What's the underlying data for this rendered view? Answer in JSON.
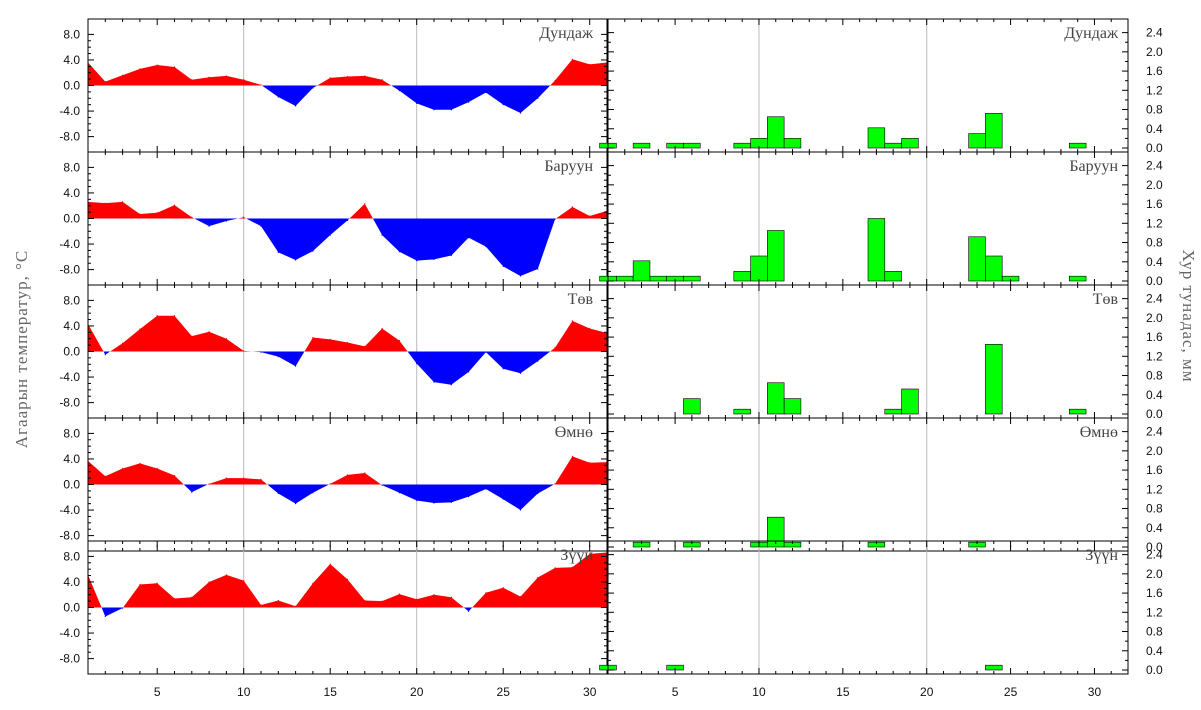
{
  "colors": {
    "positive": "#ff0000",
    "negative": "#0000ff",
    "bars": "#00ff00",
    "grid": "#bbbbbb"
  },
  "labels": {
    "left_axis_title": "Агаарын температур, °C",
    "right_axis_title": "Хур тунадас, мм"
  },
  "chart_data": [
    {
      "type": "area",
      "variable": "temperature anomaly",
      "xlabel": "",
      "ylabel": "Агаарын температур, °C",
      "xlim": [
        1,
        31
      ],
      "ylim": [
        -9,
        9
      ],
      "y_ticks": [
        "8.0",
        "4.0",
        "0.0",
        "-4.0",
        "-8.0"
      ],
      "x_ticks": [
        "5",
        "10",
        "15",
        "20",
        "25",
        "30"
      ],
      "grid": "vertical lines at x=10, 20",
      "x": [
        1,
        2,
        3,
        4,
        5,
        6,
        7,
        8,
        9,
        10,
        11,
        12,
        13,
        14,
        15,
        16,
        17,
        18,
        19,
        20,
        21,
        22,
        23,
        24,
        25,
        26,
        27,
        28,
        29,
        30,
        31
      ],
      "panels": [
        {
          "name": "Дундаж",
          "values": [
            3.6,
            0.6,
            1.6,
            2.6,
            3.2,
            2.9,
            0.9,
            1.3,
            1.5,
            0.9,
            0.1,
            -1.8,
            -3.2,
            -0.4,
            1.2,
            1.4,
            1.5,
            0.9,
            -0.8,
            -2.8,
            -3.8,
            -3.8,
            -2.6,
            -1.1,
            -3.0,
            -4.3,
            -2.0,
            0.8,
            4.1,
            3.3,
            3.6
          ]
        },
        {
          "name": "Баруун",
          "values": [
            2.6,
            2.4,
            2.6,
            0.7,
            0.9,
            2.1,
            0.2,
            -1.2,
            -0.4,
            0.2,
            -1.2,
            -5.3,
            -6.5,
            -5.1,
            -2.6,
            -0.3,
            2.3,
            -2.6,
            -5.2,
            -6.6,
            -6.4,
            -5.8,
            -3.0,
            -4.4,
            -7.5,
            -9.0,
            -7.9,
            -0.1,
            1.8,
            0.4,
            1.2
          ]
        },
        {
          "name": "Төв",
          "values": [
            4.3,
            -0.5,
            1.3,
            3.5,
            5.6,
            5.6,
            2.4,
            3.1,
            2.0,
            0.1,
            -0.1,
            -0.8,
            -2.3,
            2.2,
            1.9,
            1.4,
            0.8,
            3.6,
            1.7,
            -1.9,
            -4.8,
            -5.2,
            -3.2,
            -0.1,
            -2.7,
            -3.4,
            -1.5,
            0.6,
            4.8,
            3.6,
            2.9
          ]
        },
        {
          "name": "Өмнө",
          "values": [
            3.7,
            1.3,
            2.5,
            3.3,
            2.5,
            1.4,
            -1.2,
            0.1,
            1.0,
            1.0,
            0.8,
            -1.4,
            -3.0,
            -1.3,
            0.1,
            1.5,
            1.8,
            -0.1,
            -1.3,
            -2.5,
            -2.9,
            -2.8,
            -1.9,
            -0.7,
            -2.3,
            -4.0,
            -1.4,
            0.1,
            4.4,
            3.4,
            3.5
          ]
        },
        {
          "name": "Зүүн",
          "values": [
            5.1,
            -1.4,
            -0.1,
            3.6,
            3.8,
            1.4,
            1.6,
            4.0,
            5.1,
            4.2,
            0.4,
            1.1,
            0.2,
            3.8,
            6.8,
            4.4,
            1.1,
            1.0,
            2.1,
            1.3,
            2.0,
            1.6,
            -0.6,
            2.3,
            3.1,
            1.7,
            4.7,
            6.2,
            6.3,
            8.4,
            8.6
          ]
        }
      ]
    },
    {
      "type": "bar",
      "variable": "precipitation",
      "xlabel": "",
      "ylabel": "Хур тунадас, мм",
      "xlim": [
        1,
        32
      ],
      "ylim": [
        0,
        2.6
      ],
      "y_ticks": [
        "2.4",
        "2.0",
        "1.6",
        "1.2",
        "0.8",
        "0.4",
        "0.0"
      ],
      "x_ticks": [
        "5",
        "10",
        "15",
        "20",
        "25",
        "30"
      ],
      "grid": "vertical lines at x=10, 20",
      "panels": [
        {
          "name": "Дундаж",
          "bars": [
            [
              1,
              0.1
            ],
            [
              3,
              0.1
            ],
            [
              5,
              0.1
            ],
            [
              6,
              0.1
            ],
            [
              9,
              0.1
            ],
            [
              10,
              0.2
            ],
            [
              11,
              0.65
            ],
            [
              12,
              0.2
            ],
            [
              17,
              0.42
            ],
            [
              18,
              0.1
            ],
            [
              19,
              0.2
            ],
            [
              23,
              0.3
            ],
            [
              24,
              0.72
            ],
            [
              29,
              0.1
            ]
          ]
        },
        {
          "name": "Баруун",
          "bars": [
            [
              1,
              0.1
            ],
            [
              2,
              0.1
            ],
            [
              3,
              0.42
            ],
            [
              4,
              0.1
            ],
            [
              5,
              0.1
            ],
            [
              6,
              0.1
            ],
            [
              9,
              0.2
            ],
            [
              10,
              0.52
            ],
            [
              11,
              1.05
            ],
            [
              17,
              1.3
            ],
            [
              18,
              0.2
            ],
            [
              23,
              0.92
            ],
            [
              24,
              0.52
            ],
            [
              25,
              0.1
            ],
            [
              29,
              0.1
            ]
          ]
        },
        {
          "name": "Төв",
          "bars": [
            [
              6,
              0.32
            ],
            [
              9,
              0.1
            ],
            [
              11,
              0.65
            ],
            [
              12,
              0.32
            ],
            [
              18,
              0.1
            ],
            [
              19,
              0.52
            ],
            [
              24,
              1.45
            ],
            [
              29,
              0.1
            ]
          ]
        },
        {
          "name": "Өмнө",
          "bars": [
            [
              3,
              0.1
            ],
            [
              6,
              0.1
            ],
            [
              10,
              0.1
            ],
            [
              11,
              0.62
            ],
            [
              12,
              0.1
            ],
            [
              17,
              0.1
            ],
            [
              23,
              0.1
            ]
          ]
        },
        {
          "name": "Зүүн",
          "bars": [
            [
              1,
              0.1
            ],
            [
              5,
              0.1
            ],
            [
              24,
              0.1
            ]
          ]
        }
      ]
    }
  ]
}
